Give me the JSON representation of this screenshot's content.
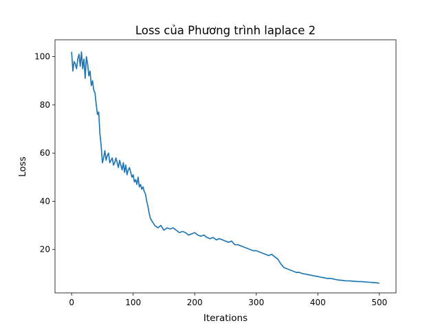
{
  "chart_data": {
    "type": "line",
    "title": "Loss của Phương trình laplace 2",
    "xlabel": "Iterations",
    "ylabel": "Loss",
    "xlim": [
      -27,
      527
    ],
    "ylim": [
      2,
      107
    ],
    "xticks": [
      0,
      100,
      200,
      300,
      400,
      500
    ],
    "yticks": [
      20,
      40,
      60,
      80,
      100
    ],
    "grid": false,
    "legend": "none",
    "series": [
      {
        "color": "#1f77b4",
        "x": [
          0,
          2,
          4,
          6,
          8,
          10,
          12,
          14,
          16,
          18,
          20,
          22,
          24,
          26,
          28,
          30,
          32,
          34,
          36,
          38,
          40,
          42,
          44,
          46,
          48,
          50,
          52,
          54,
          56,
          58,
          60,
          62,
          64,
          66,
          68,
          70,
          72,
          74,
          76,
          78,
          80,
          82,
          84,
          86,
          88,
          90,
          92,
          94,
          96,
          98,
          100,
          102,
          104,
          106,
          108,
          110,
          112,
          114,
          116,
          118,
          120,
          122,
          124,
          126,
          128,
          130,
          135,
          140,
          145,
          150,
          155,
          160,
          165,
          170,
          175,
          180,
          185,
          190,
          195,
          200,
          205,
          210,
          215,
          220,
          225,
          230,
          235,
          240,
          245,
          250,
          255,
          260,
          265,
          270,
          275,
          280,
          285,
          290,
          295,
          300,
          305,
          310,
          315,
          320,
          325,
          330,
          335,
          340,
          345,
          350,
          355,
          360,
          365,
          370,
          375,
          380,
          385,
          390,
          395,
          400,
          405,
          410,
          415,
          420,
          425,
          430,
          435,
          440,
          445,
          450,
          455,
          460,
          465,
          470,
          475,
          480,
          485,
          490,
          495,
          500
        ],
        "values": [
          102,
          94,
          98,
          97,
          95,
          99,
          101,
          96,
          102,
          95,
          99,
          91,
          100,
          97,
          92,
          94,
          88,
          90,
          86,
          85,
          80,
          76,
          77,
          68,
          63,
          56,
          58,
          61,
          57,
          59,
          60,
          56,
          57,
          58,
          55,
          56,
          58,
          56,
          54,
          57,
          55,
          53,
          56,
          52,
          55,
          51,
          53,
          54,
          52,
          50,
          51,
          48,
          49,
          47,
          50,
          46,
          47,
          45,
          46,
          44,
          43,
          40,
          38,
          35,
          33,
          32,
          30,
          29,
          30,
          28,
          29,
          28.5,
          29,
          28,
          27,
          27.5,
          27,
          26,
          26.5,
          27,
          26,
          25.5,
          26,
          25,
          24.5,
          25,
          24,
          24.5,
          24,
          23.5,
          23,
          23.5,
          22,
          22,
          21.5,
          21,
          20.5,
          20,
          19.5,
          19.5,
          19,
          18.5,
          18,
          17.5,
          18,
          17,
          16,
          14,
          12.5,
          12,
          11.5,
          11,
          10.5,
          10.5,
          10,
          9.8,
          9.5,
          9.3,
          9,
          8.8,
          8.5,
          8.3,
          8,
          8,
          7.8,
          7.5,
          7.3,
          7.2,
          7,
          7,
          6.9,
          6.8,
          6.7,
          6.7,
          6.6,
          6.5,
          6.4,
          6.3,
          6.2,
          6
        ]
      }
    ]
  }
}
